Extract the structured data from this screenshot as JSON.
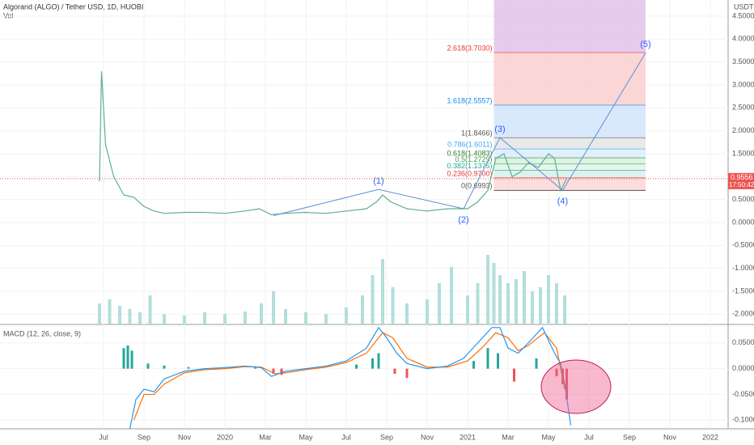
{
  "chart_data": [
    {
      "type": "line",
      "title": "Algorand (ALGO) / Tether USD, 1D, HUOBI",
      "axis_unit": "USDT",
      "xlim": [
        -5.12,
        30.88
      ],
      "xticks": [
        {
          "value": 0,
          "label": "Jul"
        },
        {
          "value": 2,
          "label": "Sep"
        },
        {
          "value": 4,
          "label": "Nov"
        },
        {
          "value": 6,
          "label": "2020"
        },
        {
          "value": 8,
          "label": "Mar"
        },
        {
          "value": 10,
          "label": "May"
        },
        {
          "value": 12,
          "label": "Jul"
        },
        {
          "value": 14,
          "label": "Sep"
        },
        {
          "value": 16,
          "label": "Nov"
        },
        {
          "value": 18,
          "label": "2021"
        },
        {
          "value": 20,
          "label": "Mar"
        },
        {
          "value": 22,
          "label": "May"
        },
        {
          "value": 24,
          "label": "Jul"
        },
        {
          "value": 26,
          "label": "Sep"
        },
        {
          "value": 28,
          "label": "Nov"
        },
        {
          "value": 30,
          "label": "2022"
        }
      ],
      "ylim": [
        -2.206,
        4.853
      ],
      "yticks": [
        {
          "value": 4.5,
          "label": "4.5000"
        },
        {
          "value": 4,
          "label": "4.0000"
        },
        {
          "value": 3.5,
          "label": "3.5000"
        },
        {
          "value": 3,
          "label": "3.0000"
        },
        {
          "value": 2.5,
          "label": "2.5000"
        },
        {
          "value": 2,
          "label": "2.0000"
        },
        {
          "value": 1.5,
          "label": "1.5000"
        },
        {
          "value": 1,
          "label": "1.0000"
        },
        {
          "value": 0.5,
          "label": "0.5000"
        },
        {
          "value": 0,
          "label": "0.0000"
        },
        {
          "value": -0.5,
          "label": "-0.5000"
        },
        {
          "value": -1,
          "label": "-1.0000"
        },
        {
          "value": -1.5,
          "label": "-1.5000"
        },
        {
          "value": -2,
          "label": "-2.0000"
        }
      ],
      "x": [
        -0.2,
        -0.1,
        0.1,
        0.5,
        1,
        1.5,
        2,
        2.5,
        3,
        4,
        5,
        6,
        7,
        7.7,
        8.3,
        9,
        10,
        11,
        12,
        13,
        13.5,
        13.8,
        14.2,
        15,
        16,
        17,
        18,
        18.5,
        19,
        19.4,
        19.8,
        20.2,
        20.6,
        21,
        21.5,
        22,
        22.3,
        22.6,
        22.9
      ],
      "values": [
        0.9,
        3.3,
        1.7,
        1.0,
        0.6,
        0.55,
        0.35,
        0.25,
        0.2,
        0.22,
        0.22,
        0.2,
        0.25,
        0.3,
        0.17,
        0.2,
        0.22,
        0.2,
        0.25,
        0.3,
        0.45,
        0.6,
        0.45,
        0.3,
        0.25,
        0.3,
        0.3,
        0.45,
        0.7,
        1.4,
        1.5,
        1.0,
        1.1,
        1.3,
        1.2,
        1.5,
        1.4,
        0.7,
        0.9556
      ],
      "color": "#5fae94",
      "last_price": {
        "value": 0.9556,
        "label": "0.9556",
        "countdown": "17:50:42",
        "color": "#ef5350"
      },
      "volume": {
        "name": "Vol",
        "lim": [
          0,
          100
        ],
        "color": "#b2dfdb",
        "x": [
          -0.2,
          0.3,
          0.8,
          1.3,
          1.8,
          2.3,
          3,
          4,
          5,
          6,
          7,
          7.8,
          8.4,
          9,
          10,
          11,
          12,
          12.8,
          13.3,
          13.8,
          14.3,
          15,
          16,
          16.6,
          17.2,
          18,
          18.5,
          19,
          19.3,
          19.6,
          20,
          20.4,
          20.8,
          21.2,
          21.6,
          22,
          22.4,
          22.8
        ],
        "values": [
          25,
          30,
          22,
          18,
          14,
          35,
          12,
          10,
          14,
          12,
          15,
          25,
          40,
          18,
          14,
          12,
          20,
          35,
          60,
          80,
          45,
          25,
          30,
          50,
          70,
          35,
          50,
          85,
          75,
          60,
          50,
          55,
          65,
          40,
          45,
          60,
          50,
          35
        ]
      },
      "fib_x": [
        19.3,
        26.8
      ],
      "fib_levels": [
        {
          "value": 3.703,
          "label": "2.618(3.7030)",
          "color": "#e53935",
          "fill": "#e1bee7"
        },
        {
          "value": 2.5557,
          "label": "1.618(2.5557)",
          "color": "#1e88e5",
          "fill": "#f9cccc"
        },
        {
          "value": 1.8466,
          "label": "1(1.8466)",
          "color": "#555555",
          "fill": "#cfe4fb"
        },
        {
          "value": 1.6011,
          "label": "0.786(1.6011)",
          "color": "#42a5f5",
          "fill": "#e3e3e3"
        },
        {
          "value": 1.4083,
          "label": "0.618(1.4083)",
          "color": "#2e7d32",
          "fill": "#d9ecfb"
        },
        {
          "value": 1.2729,
          "label": "0.5(1.2729)",
          "color": "#43a047",
          "fill": "#d4f0dc"
        },
        {
          "value": 1.1375,
          "label": "0.382(1.1375)",
          "color": "#26a69a",
          "fill": "#e0f4e6"
        },
        {
          "value": 0.97,
          "label": "0.236(0.9700)",
          "color": "#e53935",
          "fill": "#d6efe8"
        },
        {
          "value": 0.6993,
          "label": "0(0.6993)",
          "color": "#555555",
          "fill": "#fbd3d3"
        }
      ],
      "waves": {
        "x": [
          8.4,
          13.6,
          17.8,
          19.6,
          22.7,
          26.8
        ],
        "y": [
          0.15,
          0.72,
          0.3,
          1.85,
          0.7,
          3.7
        ],
        "labels": [
          null,
          "(1)",
          "(2)",
          "(3)",
          "(4)",
          "(5)"
        ]
      }
    },
    {
      "type": "macd",
      "title": "MACD (12, 26, close, 9)",
      "ylim": [
        -0.117,
        0.0844
      ],
      "yticks": [
        {
          "value": 0.05,
          "label": "0.0500"
        },
        {
          "value": 0,
          "label": "0.0000"
        },
        {
          "value": -0.05,
          "label": "-0.0500"
        },
        {
          "value": -0.1,
          "label": "-0.1000"
        }
      ],
      "macd": {
        "color": "#2196f3",
        "x": [
          1.3,
          1.6,
          2,
          2.5,
          3,
          4,
          5,
          6,
          7,
          7.8,
          8.3,
          9,
          10,
          11,
          12,
          13,
          13.6,
          14,
          14.5,
          15,
          16,
          17,
          17.8,
          18.5,
          19.2,
          19.6,
          20,
          20.5,
          21,
          21.7,
          22.3,
          22.6,
          22.8,
          23.1
        ],
        "values": [
          -0.117,
          -0.06,
          -0.04,
          -0.045,
          -0.02,
          -0.005,
          0.0,
          0.002,
          0.005,
          0.002,
          -0.015,
          -0.005,
          0.0,
          0.005,
          0.015,
          0.04,
          0.08,
          0.06,
          0.03,
          0.01,
          0.0,
          0.005,
          0.02,
          0.05,
          0.08,
          0.08,
          0.04,
          0.03,
          0.05,
          0.08,
          0.03,
          0.01,
          -0.03,
          -0.11
        ]
      },
      "signal": {
        "color": "#ff6d00",
        "x": [
          1.5,
          2,
          2.5,
          3,
          4,
          5,
          6,
          7,
          7.8,
          8.5,
          9,
          10,
          11,
          12,
          13,
          13.8,
          14.3,
          15,
          16,
          17,
          18,
          18.7,
          19.4,
          20,
          20.5,
          21,
          21.8,
          22.4,
          22.8
        ],
        "values": [
          -0.1,
          -0.05,
          -0.05,
          -0.03,
          -0.008,
          -0.002,
          0.0,
          0.004,
          0.003,
          -0.01,
          -0.008,
          -0.002,
          0.003,
          0.012,
          0.03,
          0.07,
          0.06,
          0.02,
          0.003,
          0.003,
          0.015,
          0.04,
          0.07,
          0.06,
          0.035,
          0.045,
          0.07,
          0.04,
          -0.04
        ]
      },
      "histogram": {
        "up_color": "#26a69a",
        "down_color": "#ef5350",
        "x": [
          1.0,
          1.2,
          1.4,
          2.2,
          3,
          4.2,
          7.5,
          8.4,
          8.8,
          12.5,
          13.3,
          13.6,
          14.4,
          15,
          18.3,
          19.0,
          19.5,
          20.3,
          21.4,
          22.4,
          22.7,
          22.9
        ],
        "values": [
          0.04,
          0.045,
          0.035,
          0.01,
          0.006,
          0.003,
          0.002,
          -0.01,
          -0.012,
          0.008,
          0.02,
          0.03,
          -0.01,
          -0.018,
          0.015,
          0.04,
          0.03,
          -0.025,
          0.02,
          -0.015,
          -0.03,
          -0.06
        ]
      }
    }
  ]
}
